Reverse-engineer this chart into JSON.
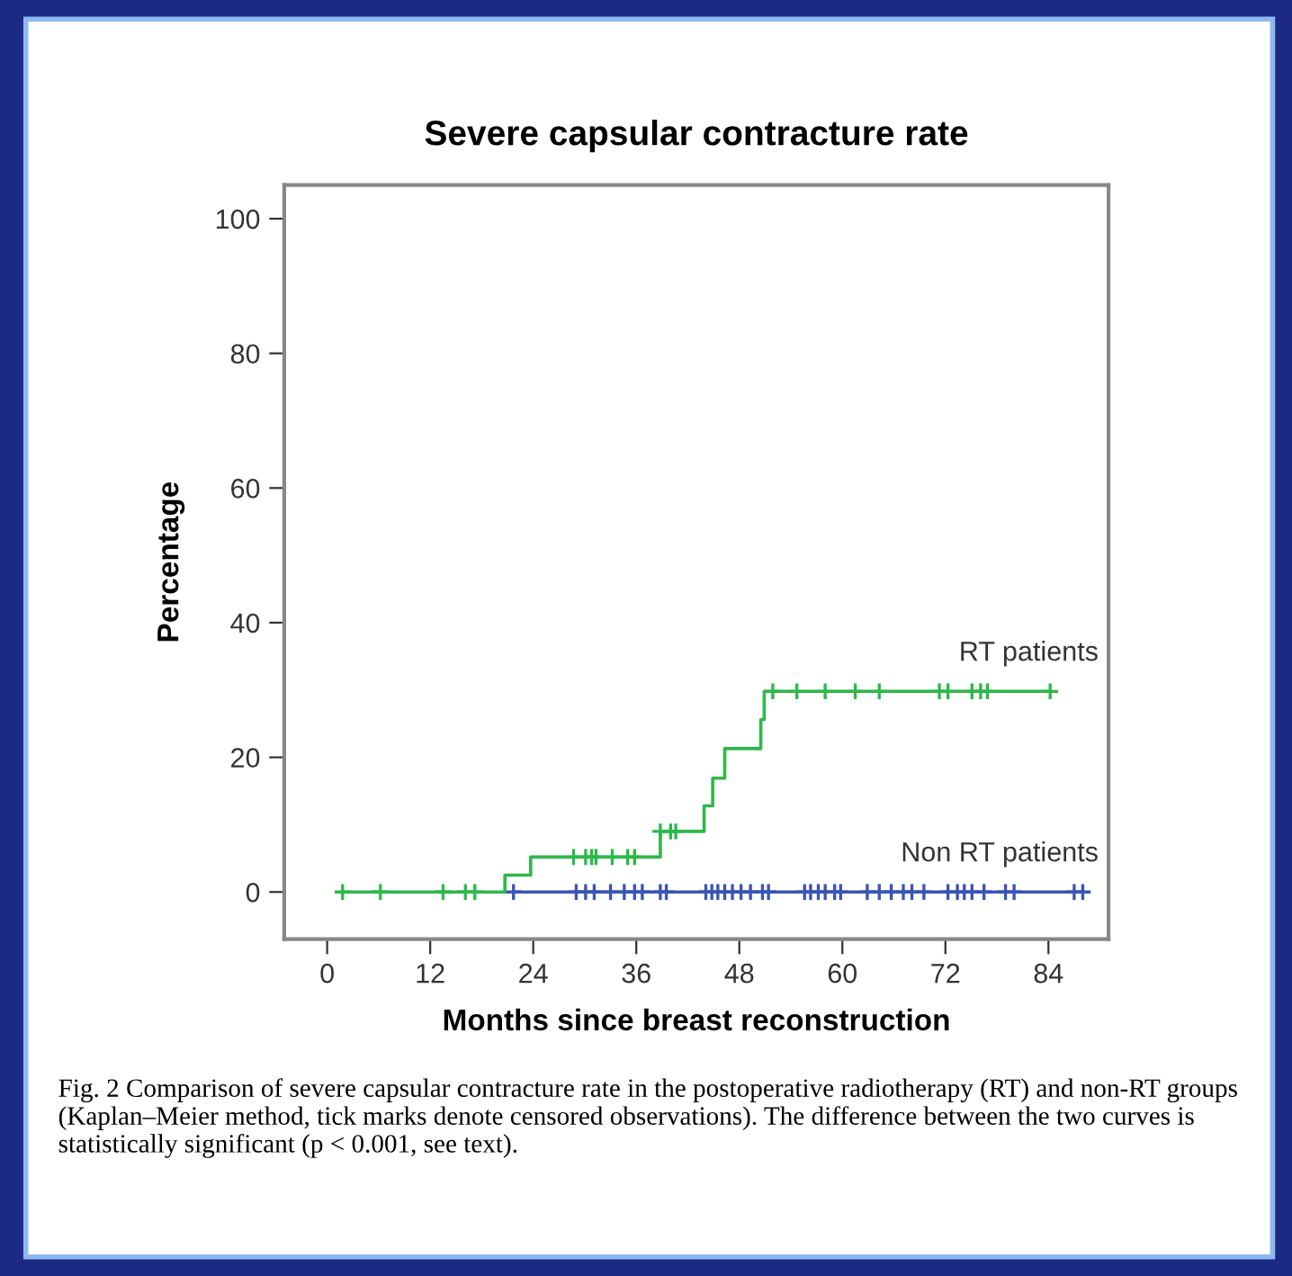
{
  "chart_data": {
    "type": "step",
    "title": "Severe capsular contracture rate",
    "xlabel": "Months since breast reconstruction",
    "ylabel": "Percentage",
    "xlim": [
      -5,
      91
    ],
    "ylim": [
      -7,
      105
    ],
    "xticks": [
      0,
      12,
      24,
      36,
      48,
      60,
      72,
      84
    ],
    "yticks": [
      0,
      20,
      40,
      60,
      80,
      100
    ],
    "grid": false,
    "legend": false,
    "series": [
      {
        "name": "Non RT patients",
        "color": "#3a55b4",
        "x": [
          21.7,
          88.0
        ],
        "values": [
          0,
          0
        ]
      },
      {
        "type": "scatter",
        "color": "#3a55b4",
        "marker": "cross",
        "x": [
          21.7,
          29.0,
          30.1,
          31.1,
          33.0,
          34.6,
          35.8,
          36.7,
          38.8,
          39.5,
          44.1,
          44.8,
          45.5,
          46.3,
          47.2,
          48.2,
          49.3,
          50.7,
          51.4,
          55.6,
          56.3,
          57.2,
          58.0,
          59.1,
          59.8,
          62.9,
          64.3,
          65.7,
          67.1,
          68.1,
          69.5,
          72.3,
          73.4,
          74.2,
          75.1,
          76.5,
          79.0,
          80.0,
          87.0,
          88.0
        ],
        "values": [
          0,
          0,
          0,
          0,
          0,
          0,
          0,
          0,
          0,
          0,
          0,
          0,
          0,
          0,
          0,
          0,
          0,
          0,
          0,
          0,
          0,
          0,
          0,
          0,
          0,
          0,
          0,
          0,
          0,
          0,
          0,
          0,
          0,
          0,
          0,
          0,
          0,
          0,
          0,
          0
        ]
      },
      {
        "name": "RT patients",
        "color": "#2db84a",
        "x": [
          1.8,
          20.7,
          23.7,
          38.8,
          43.9,
          44.9,
          46.3,
          50.5,
          50.9,
          84.2
        ],
        "values": [
          0,
          2.5,
          5.2,
          9.0,
          12.8,
          16.9,
          21.3,
          25.6,
          29.8,
          29.8
        ]
      },
      {
        "type": "scatter",
        "color": "#2db84a",
        "marker": "cross",
        "x": [
          1.8,
          6.2,
          13.5,
          16.1,
          17.2,
          28.7,
          30.1,
          30.8,
          31.3,
          33.2,
          35.0,
          35.8,
          38.8,
          40.0,
          40.6,
          51.9,
          54.7,
          58.0,
          61.5,
          64.3,
          71.3,
          72.3,
          75.1,
          76.1,
          76.9,
          84.2
        ],
        "values": [
          0,
          0,
          0,
          0,
          0,
          5.2,
          5.2,
          5.2,
          5.2,
          5.2,
          5.2,
          5.2,
          9.0,
          9.0,
          9.0,
          29.8,
          29.8,
          29.8,
          29.8,
          29.8,
          29.8,
          29.8,
          29.8,
          29.8,
          29.8,
          29.8
        ]
      }
    ],
    "annotations": [
      "Fig. 2 Comparison of severe capsular contracture rate in the postoperative radiotherapy (RT) and non-RT groups (Kaplan–Meier method, tick marks denote censored observations). The difference between the two curves is statistically significant (p < 0.001, see text)."
    ]
  }
}
